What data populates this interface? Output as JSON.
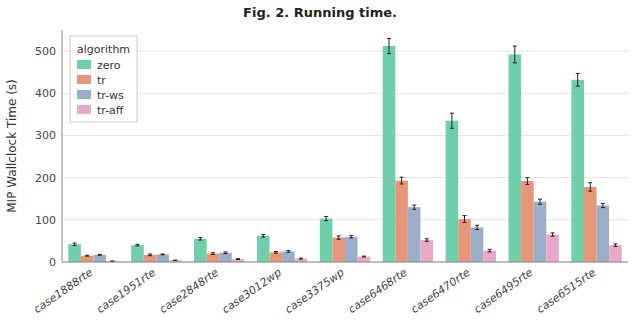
{
  "chart_data": {
    "type": "bar",
    "title": "Fig. 2. Running time.",
    "ylabel": "MIP Wallclock Time (s)",
    "categories": [
      "case1888rte",
      "case1951rte",
      "case2848rte",
      "case3012wp",
      "case3375wp",
      "case6468rte",
      "case6470rte",
      "case6495rte",
      "case6515rte"
    ],
    "series": [
      {
        "name": "zero",
        "color": "#6ecfaa",
        "values": [
          42,
          40,
          55,
          62,
          103,
          512,
          335,
          492,
          432
        ],
        "errors": [
          3,
          2,
          3,
          3,
          5,
          18,
          18,
          20,
          15
        ]
      },
      {
        "name": "tr",
        "color": "#e8967a",
        "values": [
          15,
          17,
          20,
          23,
          58,
          193,
          102,
          192,
          178
        ],
        "errors": [
          1,
          2,
          2,
          2,
          4,
          8,
          8,
          8,
          10
        ]
      },
      {
        "name": "tr-ws",
        "color": "#9aaec8",
        "values": [
          17,
          18,
          22,
          25,
          60,
          130,
          82,
          143,
          134
        ],
        "errors": [
          1,
          1,
          2,
          2,
          3,
          5,
          5,
          6,
          5
        ]
      },
      {
        "name": "tr-aff",
        "color": "#e8a8c8",
        "values": [
          2,
          4,
          7,
          8,
          13,
          52,
          27,
          65,
          40
        ],
        "errors": [
          0.5,
          0.5,
          1,
          1,
          1,
          3,
          3,
          4,
          3
        ]
      }
    ],
    "ylim": [
      0,
      550
    ],
    "yticks": [
      0,
      100,
      200,
      300,
      400,
      500
    ],
    "grid": true,
    "legend": "upper left",
    "legend_title": "algorithm"
  }
}
